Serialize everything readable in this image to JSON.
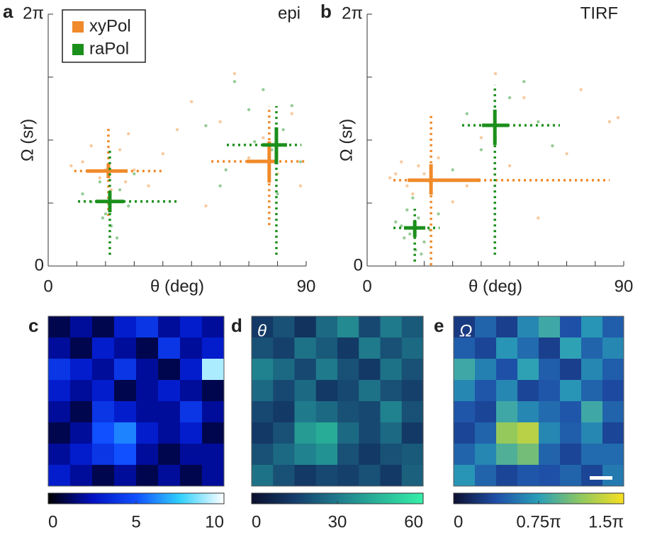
{
  "chart_data": [
    {
      "type": "scatter",
      "label": "a",
      "annotation": "epi",
      "xlabel": "θ (deg)",
      "ylabel": "Ω (sr)",
      "xlim": [
        0,
        90
      ],
      "ylim": [
        0,
        6.283
      ],
      "xticks": [
        0,
        90
      ],
      "xminor": [
        10,
        20,
        30,
        40,
        50,
        60,
        70,
        80
      ],
      "yticks": [
        0,
        {
          "value": 6.283,
          "label": "2π"
        }
      ],
      "yminor": [
        1.571,
        3.142,
        4.712
      ],
      "legend": "upper left",
      "series": [
        {
          "name": "xyPol",
          "color": "#f08a2a",
          "x": [
            12,
            18,
            25,
            30,
            8,
            22,
            28,
            35,
            15,
            40,
            50,
            60,
            70,
            75,
            80,
            85,
            88,
            65,
            55,
            45,
            20,
            27
          ],
          "y": [
            2.6,
            2.2,
            2.9,
            2.4,
            2.5,
            1.9,
            3.3,
            2.0,
            3.0,
            2.8,
            4.1,
            3.6,
            2.7,
            3.2,
            2.3,
            3.8,
            2.0,
            4.8,
            1.5,
            3.4,
            2.4,
            2.1
          ],
          "crosses": [
            {
              "x": 21,
              "y": 2.37,
              "xbar": [
                13.4,
                27.7
              ],
              "ybar": [
                2.19,
                2.55
              ],
              "xrange": [
                9.1,
                40.5
              ],
              "yrange": [
                1.25,
                3.49
              ]
            },
            {
              "x": 77.1,
              "y": 2.61,
              "xbar": [
                69.2,
                79.1
              ],
              "ybar": [
                2.08,
                3.11
              ],
              "xrange": [
                56.9,
                90
              ],
              "yrange": [
                1.02,
                3.99
              ]
            }
          ]
        },
        {
          "name": "raPol",
          "color": "#1b8f1b",
          "x": [
            15,
            20,
            25,
            18,
            22,
            28,
            30,
            12,
            24,
            19,
            55,
            62,
            70,
            75,
            78,
            82,
            85,
            88,
            80,
            72,
            65,
            60
          ],
          "y": [
            1.6,
            1.3,
            1.9,
            2.1,
            1.0,
            1.5,
            2.3,
            1.8,
            0.7,
            1.2,
            3.5,
            2.4,
            3.9,
            4.4,
            2.9,
            3.4,
            4.0,
            2.6,
            1.8,
            3.1,
            4.6,
            2.0
          ],
          "crosses": [
            {
              "x": 21.5,
              "y": 1.61,
              "xbar": [
                16.6,
                26.5
              ],
              "ybar": [
                1.34,
                1.87
              ],
              "xrange": [
                10.4,
                45
              ],
              "yrange": [
                0.28,
                2.93
              ]
            },
            {
              "x": 79.6,
              "y": 3.02,
              "xbar": [
                74.7,
                83.3
              ],
              "ybar": [
                2.54,
                3.46
              ],
              "xrange": [
                62.3,
                88.3
              ],
              "yrange": [
                0.28,
                3.99
              ]
            }
          ]
        }
      ]
    },
    {
      "type": "scatter",
      "label": "b",
      "annotation": "TIRF",
      "xlabel": "θ (deg)",
      "ylabel": "Ω (sr)",
      "xlim": [
        0,
        90
      ],
      "ylim": [
        0,
        6.283
      ],
      "xticks": [
        0,
        90
      ],
      "xminor": [
        10,
        20,
        30,
        40,
        50,
        60,
        70,
        80
      ],
      "yticks": [
        0,
        {
          "value": 6.283,
          "label": "2π"
        }
      ],
      "yminor": [
        1.571,
        3.142,
        4.712
      ],
      "series": [
        {
          "color": "#f08a2a",
          "x": [
            10,
            14,
            18,
            22,
            12,
            16,
            20,
            8,
            25,
            30,
            40,
            55,
            70,
            85,
            60,
            45,
            35,
            75,
            88,
            50
          ],
          "y": [
            2.3,
            2.0,
            2.5,
            2.1,
            2.6,
            1.8,
            2.3,
            2.2,
            2.7,
            1.6,
            3.2,
            4.2,
            2.8,
            3.6,
            1.2,
            4.8,
            2.0,
            4.4,
            3.7,
            2.5
          ],
          "crosses": [
            {
              "x": 22.4,
              "y": 2.14,
              "xbar": [
                14.2,
                39.8
              ],
              "ybar": [
                1.78,
                2.54
              ],
              "xrange": [
                9.2,
                85
              ],
              "yrange": [
                0.02,
                3.81
              ]
            }
          ]
        },
        {
          "color": "#1b8f1b",
          "x": [
            12,
            15,
            18,
            20,
            14,
            22,
            17,
            10,
            25,
            16,
            19,
            13,
            35,
            45,
            50,
            60,
            40,
            55,
            30,
            65
          ],
          "y": [
            1.0,
            0.8,
            1.2,
            0.6,
            1.4,
            0.9,
            0.4,
            1.1,
            1.3,
            1.7,
            0.3,
            0.7,
            3.8,
            3.2,
            4.2,
            3.6,
            2.9,
            4.6,
            2.4,
            3.0
          ],
          "crosses": [
            {
              "x": 16.7,
              "y": 0.95,
              "xbar": [
                12.9,
                20.4
              ],
              "ybar": [
                0.72,
                1.13
              ],
              "xrange": [
                9.2,
                25.4
              ],
              "yrange": [
                0.11,
                1.43
              ]
            },
            {
              "x": 44.8,
              "y": 3.51,
              "xbar": [
                40.3,
                49.7
              ],
              "ybar": [
                3.02,
                3.9
              ],
              "xrange": [
                33.3,
                67.6
              ],
              "yrange": [
                0.28,
                4.52
              ]
            }
          ]
        }
      ]
    },
    {
      "type": "heatmap",
      "label": "c",
      "colormap": "blue",
      "clim": [
        0,
        10
      ],
      "cticks": [
        0,
        5,
        10
      ],
      "values": [
        [
          1,
          2,
          1,
          3,
          4,
          2,
          3,
          2
        ],
        [
          2,
          1,
          3,
          2,
          1,
          4,
          2,
          3
        ],
        [
          4,
          3,
          2,
          4,
          2,
          1,
          3,
          9
        ],
        [
          3,
          2,
          3,
          1,
          2,
          3,
          2,
          1
        ],
        [
          2,
          1,
          4,
          3,
          2,
          2,
          4,
          2
        ],
        [
          1,
          2,
          5,
          6,
          3,
          2,
          3,
          1
        ],
        [
          2,
          3,
          4,
          5,
          2,
          1,
          2,
          2
        ],
        [
          3,
          2,
          1,
          2,
          1,
          2,
          1,
          2
        ]
      ]
    },
    {
      "type": "heatmap",
      "label": "d",
      "annotation": "θ",
      "colormap": "teal",
      "clim": [
        0,
        60
      ],
      "cticks": [
        0,
        30,
        60
      ],
      "values": [
        [
          14,
          20,
          12,
          26,
          34,
          18,
          30,
          22
        ],
        [
          20,
          16,
          28,
          22,
          14,
          30,
          20,
          26
        ],
        [
          32,
          26,
          18,
          30,
          20,
          14,
          28,
          20
        ],
        [
          26,
          18,
          26,
          14,
          18,
          28,
          20,
          16
        ],
        [
          18,
          14,
          30,
          26,
          20,
          18,
          32,
          20
        ],
        [
          14,
          20,
          38,
          42,
          26,
          18,
          26,
          14
        ],
        [
          20,
          26,
          32,
          36,
          20,
          14,
          20,
          22
        ],
        [
          28,
          20,
          14,
          18,
          16,
          20,
          14,
          24
        ]
      ]
    },
    {
      "type": "heatmap",
      "label": "e",
      "annotation": "Ω",
      "colormap": "parula",
      "clim": [
        0,
        4.712
      ],
      "cticks": [
        0,
        {
          "value": 2.356,
          "label": "0.75π"
        },
        {
          "value": 4.712,
          "label": "1.5π"
        }
      ],
      "values": [
        [
          0.8,
          1.5,
          0.9,
          2.0,
          2.6,
          1.2,
          2.2,
          1.4
        ],
        [
          1.4,
          1.0,
          2.2,
          1.6,
          0.9,
          2.4,
          1.5,
          2.0
        ],
        [
          2.6,
          1.9,
          1.2,
          2.4,
          1.4,
          0.9,
          2.0,
          1.4
        ],
        [
          2.0,
          1.3,
          2.0,
          1.0,
          1.3,
          2.2,
          1.5,
          1.1
        ],
        [
          1.3,
          1.0,
          2.6,
          2.0,
          1.6,
          1.3,
          2.6,
          1.5
        ],
        [
          1.0,
          1.5,
          3.6,
          4.0,
          2.0,
          1.4,
          2.0,
          1.0
        ],
        [
          1.5,
          2.0,
          2.8,
          3.2,
          1.5,
          1.0,
          1.6,
          1.6
        ],
        [
          2.2,
          1.5,
          1.0,
          1.3,
          1.2,
          1.5,
          1.0,
          1.8
        ]
      ]
    }
  ]
}
